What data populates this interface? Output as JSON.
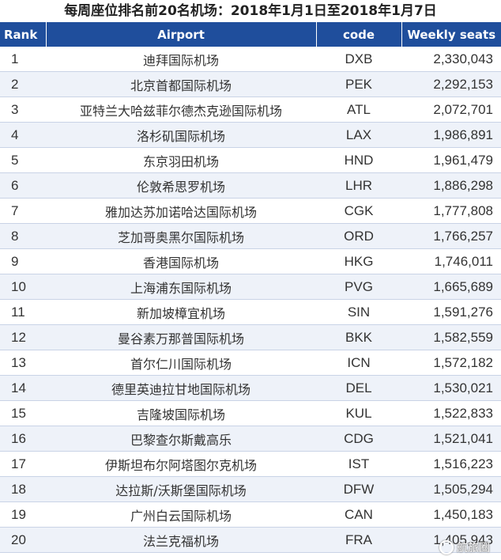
{
  "title": "每周座位排名前20名机场：2018年1月1日至2018年1月7日",
  "colors": {
    "header_bg": "#1f4e9c",
    "stripe_bg": "#eef2f9"
  },
  "table": {
    "headers": {
      "rank": "Rank",
      "airport": "Airport",
      "code": "code",
      "seats": "Weekly seats"
    },
    "rows": [
      {
        "rank": "1",
        "airport": "迪拜国际机场",
        "code": "DXB",
        "seats": "2,330,043"
      },
      {
        "rank": "2",
        "airport": "北京首都国际机场",
        "code": "PEK",
        "seats": "2,292,153"
      },
      {
        "rank": "3",
        "airport": "亚特兰大哈兹菲尔德杰克逊国际机场",
        "code": "ATL",
        "seats": "2,072,701"
      },
      {
        "rank": "4",
        "airport": "洛杉矶国际机场",
        "code": "LAX",
        "seats": "1,986,891"
      },
      {
        "rank": "5",
        "airport": "东京羽田机场",
        "code": "HND",
        "seats": "1,961,479"
      },
      {
        "rank": "6",
        "airport": "伦敦希思罗机场",
        "code": "LHR",
        "seats": "1,886,298"
      },
      {
        "rank": "7",
        "airport": "雅加达苏加诺哈达国际机场",
        "code": "CGK",
        "seats": "1,777,808"
      },
      {
        "rank": "8",
        "airport": "芝加哥奥黑尔国际机场",
        "code": "ORD",
        "seats": "1,766,257"
      },
      {
        "rank": "9",
        "airport": "香港国际机场",
        "code": "HKG",
        "seats": "1,746,011"
      },
      {
        "rank": "10",
        "airport": "上海浦东国际机场",
        "code": "PVG",
        "seats": "1,665,689"
      },
      {
        "rank": "11",
        "airport": "新加坡樟宜机场",
        "code": "SIN",
        "seats": "1,591,276"
      },
      {
        "rank": "12",
        "airport": "曼谷素万那普国际机场",
        "code": "BKK",
        "seats": "1,582,559"
      },
      {
        "rank": "13",
        "airport": "首尔仁川国际机场",
        "code": "ICN",
        "seats": "1,572,182"
      },
      {
        "rank": "14",
        "airport": "德里英迪拉甘地国际机场",
        "code": "DEL",
        "seats": "1,530,021"
      },
      {
        "rank": "15",
        "airport": "吉隆坡国际机场",
        "code": "KUL",
        "seats": "1,522,833"
      },
      {
        "rank": "16",
        "airport": "巴黎查尔斯戴高乐",
        "code": "CDG",
        "seats": "1,521,041"
      },
      {
        "rank": "17",
        "airport": "伊斯坦布尔阿塔图尔克机场",
        "code": "IST",
        "seats": "1,516,223"
      },
      {
        "rank": "18",
        "airport": "达拉斯/沃斯堡国际机场",
        "code": "DFW",
        "seats": "1,505,294"
      },
      {
        "rank": "19",
        "airport": "广州白云国际机场",
        "code": "CAN",
        "seats": "1,450,183"
      },
      {
        "rank": "20",
        "airport": "法兰克福机场",
        "code": "FRA",
        "seats": "1,405,943"
      }
    ]
  },
  "watermark": {
    "text": "航旅圈",
    "icon": "watermark-logo-icon"
  }
}
